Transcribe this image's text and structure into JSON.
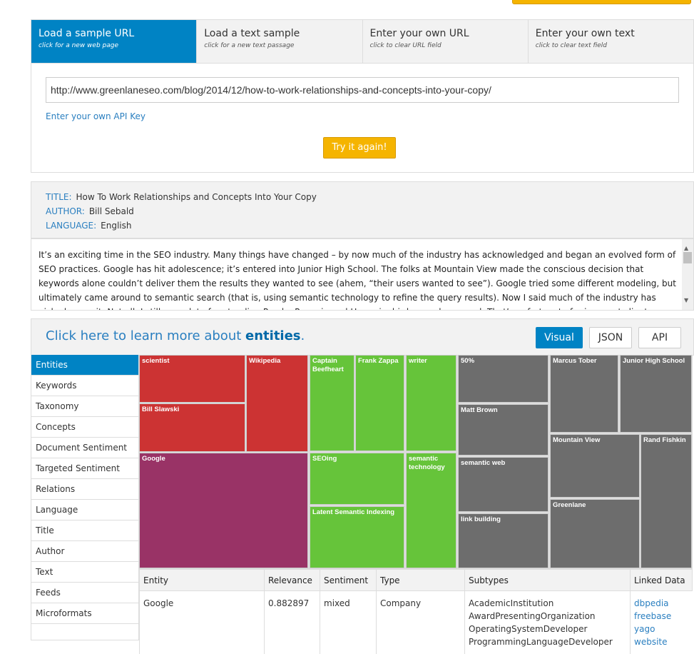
{
  "tabs": [
    {
      "title": "Load a sample URL",
      "sub": "click for a new web page"
    },
    {
      "title": "Load a text sample",
      "sub": "click for a new text passage"
    },
    {
      "title": "Enter your own URL",
      "sub": "click to clear URL field"
    },
    {
      "title": "Enter your own text",
      "sub": "click to clear text field"
    }
  ],
  "input": {
    "url": "http://www.greenlaneseo.com/blog/2014/12/how-to-work-relationships-and-concepts-into-your-copy/",
    "api_key_link": "Enter your own API Key",
    "try_button": "Try it again!"
  },
  "meta": {
    "title_label": "TITLE:",
    "title": "How To Work Relationships and Concepts Into Your Copy",
    "author_label": "AUTHOR:",
    "author": "Bill Sebald",
    "language_label": "LANGUAGE:",
    "language": "English"
  },
  "text": "It’s an exciting time in the SEO industry. Many things have changed – by now much of the industry has acknowledged and began an evolved form of SEO practices. Google has hit adolescence; it’s entered into Junior High School. The folks at Mountain View made the conscious decision that keywords alone couldn’t deliver them the results they wanted to see (ahem, “their users wanted to see”). Google tried some different modeling, but ultimately came around to semantic search (that is, using semantic technology to refine the query results). Now I said much of the industry has picked up on it. Not all. I still see a lot of pretending Panda, Penguin and Hummingbird never happened. That’s unfortunate for innocent clients around the world. But for most of us probably reading",
  "learn": {
    "prefix": "Click here to learn more about ",
    "bold": "entities",
    "suffix": "."
  },
  "views": [
    "Visual",
    "JSON",
    "API"
  ],
  "sidebar": [
    "Entities",
    "Keywords",
    "Taxonomy",
    "Concepts",
    "Document Sentiment",
    "Targeted Sentiment",
    "Relations",
    "Language",
    "Title",
    "Author",
    "Text",
    "Feeds",
    "Microformats"
  ],
  "colors": {
    "negative": "#cc3333",
    "mixed": "#993366",
    "positive": "#66c43a",
    "neutral": "#6d6d6d",
    "accent": "#0083c4"
  },
  "treemap": [
    {
      "label": "scientist",
      "sentiment": "negative"
    },
    {
      "label": "Bill Slawski",
      "sentiment": "negative"
    },
    {
      "label": "Wikipedia",
      "sentiment": "negative"
    },
    {
      "label": "Google",
      "sentiment": "mixed"
    },
    {
      "label": "Captain Beefheart",
      "sentiment": "positive"
    },
    {
      "label": "Frank Zappa",
      "sentiment": "positive"
    },
    {
      "label": "writer",
      "sentiment": "positive"
    },
    {
      "label": "SEOing",
      "sentiment": "positive"
    },
    {
      "label": "Latent Semantic Indexing",
      "sentiment": "positive"
    },
    {
      "label": "semantic technology",
      "sentiment": "positive"
    },
    {
      "label": "50%",
      "sentiment": "neutral"
    },
    {
      "label": "Matt Brown",
      "sentiment": "neutral"
    },
    {
      "label": "semantic web",
      "sentiment": "neutral"
    },
    {
      "label": "link building",
      "sentiment": "neutral"
    },
    {
      "label": "Marcus Tober",
      "sentiment": "neutral"
    },
    {
      "label": "Junior High School",
      "sentiment": "neutral"
    },
    {
      "label": "Mountain View",
      "sentiment": "neutral"
    },
    {
      "label": "Greenlane",
      "sentiment": "neutral"
    },
    {
      "label": "Rand Fishkin",
      "sentiment": "neutral"
    }
  ],
  "table": {
    "headers": [
      "Entity",
      "Relevance",
      "Sentiment",
      "Type",
      "Subtypes",
      "Linked Data"
    ],
    "rows": [
      {
        "entity": "Google",
        "relevance": "0.882897",
        "sentiment": "mixed",
        "type": "Company",
        "subtypes": [
          "AcademicInstitution",
          "AwardPresentingOrganization",
          "OperatingSystemDeveloper",
          "ProgrammingLanguageDeveloper"
        ],
        "links": [
          "dbpedia",
          "freebase",
          "yago",
          "website"
        ]
      }
    ]
  }
}
